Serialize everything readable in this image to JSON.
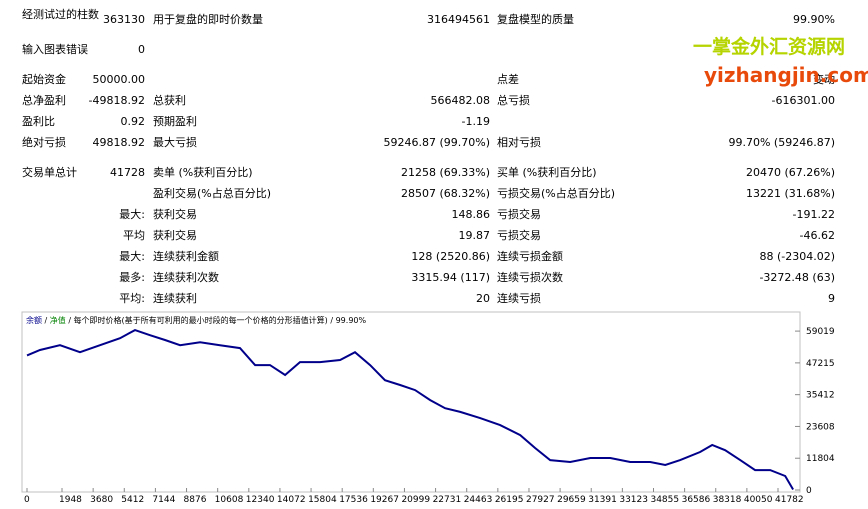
{
  "report": {
    "rows": [
      [
        "经测试过的柱数",
        "363130",
        "用于复盘的即时价数量",
        "316494561",
        "复盘模型的质量",
        "99.90%"
      ],
      [
        "输入图表错误",
        "0",
        null,
        null,
        null,
        null
      ],
      [
        "起始资金",
        "50000.00",
        null,
        null,
        "点差",
        "变动"
      ],
      [
        "总净盈利",
        "-49818.92",
        "总获利",
        "566482.08",
        "总亏损",
        "-616301.00"
      ],
      [
        "盈利比",
        "0.92",
        "预期盈利",
        "-1.19",
        null,
        null
      ],
      [
        "绝对亏损",
        "49818.92",
        "最大亏损",
        "59246.87 (99.70%)",
        "相对亏损",
        "99.70% (59246.87)"
      ],
      [
        "交易单总计",
        "41728",
        "卖单 (%获利百分比)",
        "21258 (69.33%)",
        "买单 (%获利百分比)",
        "20470 (67.26%)"
      ],
      [
        null,
        null,
        "盈利交易(%占总百分比)",
        "28507 (68.32%)",
        "亏损交易(%占总百分比)",
        "13221 (31.68%)"
      ],
      [
        null,
        "最大:",
        "获利交易",
        "148.86",
        "亏损交易",
        "-191.22"
      ],
      [
        null,
        "平均",
        "获利交易",
        "19.87",
        "亏损交易",
        "-46.62"
      ],
      [
        null,
        "最大:",
        "连续获利金额",
        "128 (2520.86)",
        "连续亏损金额",
        "88 (-2304.02)"
      ],
      [
        null,
        "最多:",
        "连续获利次数",
        "3315.94 (117)",
        "连续亏损次数",
        "-3272.48 (63)"
      ],
      [
        null,
        "平均:",
        "连续获利",
        "20",
        "连续亏损",
        "9"
      ]
    ]
  },
  "watermark": {
    "line1": "一掌金外汇资源网",
    "line2": "yizhangjin.com"
  },
  "chart_data": {
    "type": "line",
    "labels": [
      "净值",
      "每个即时价格(基于所有可利用的最小时段的每一个价格的分形插值计算)",
      "99.90%"
    ],
    "x": [
      0,
      723,
      1836,
      2950,
      4060,
      5175,
      6010,
      6845,
      7680,
      8515,
      9630,
      10740,
      11850,
      12690,
      13520,
      14360,
      15190,
      16300,
      17420,
      18250,
      19090,
      19920,
      20760,
      21590,
      22430,
      23260,
      24100,
      25210,
      26320,
      27440,
      28270,
      29110,
      30220,
      31340,
      32450,
      33560,
      34670,
      35510,
      36340,
      37450,
      38120,
      38840,
      39680,
      40510,
      41350,
      42180,
      42620
    ],
    "series": [
      {
        "name": "余额",
        "color": "#00008b",
        "values": [
          50000,
          52000,
          53800,
          51200,
          53800,
          56400,
          59400,
          57500,
          55700,
          53800,
          54900,
          53800,
          52700,
          46400,
          46400,
          42700,
          47500,
          47500,
          48300,
          51200,
          46400,
          40800,
          39000,
          37100,
          33400,
          30400,
          29000,
          26700,
          24100,
          20400,
          15600,
          11100,
          10400,
          11900,
          11900,
          10400,
          10400,
          9300,
          11100,
          14100,
          16700,
          14800,
          11100,
          7400,
          7400,
          5200,
          181.08
        ]
      }
    ],
    "label_color": "#008000",
    "xlim": [
      0,
      42950
    ],
    "ylim": [
      0,
      65000
    ],
    "xticks": [
      0,
      1948,
      3680,
      5412,
      7144,
      8876,
      10608,
      12340,
      14072,
      15804,
      17536,
      19267,
      20999,
      22731,
      24463,
      26195,
      27927,
      29659,
      31391,
      33123,
      34855,
      36586,
      38318,
      40050,
      41782
    ],
    "yticks": [
      0,
      11804,
      23608,
      35412,
      47215,
      59019
    ]
  }
}
